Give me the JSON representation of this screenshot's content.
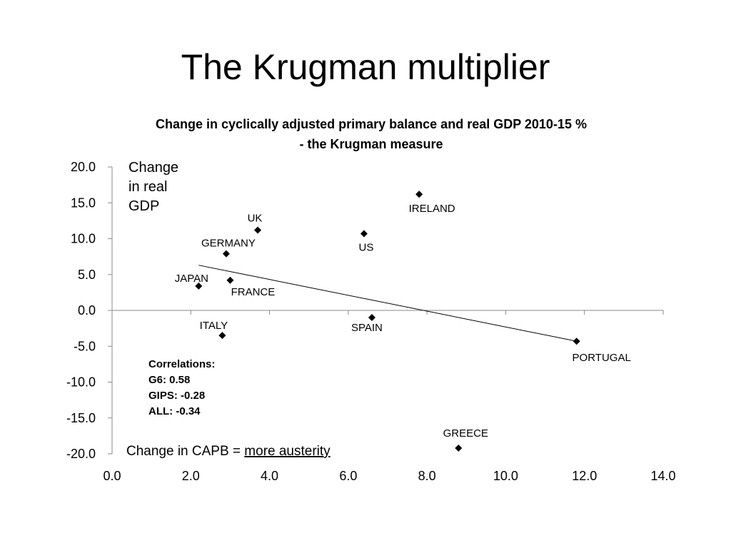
{
  "slide": {
    "title": "The Krugman multiplier"
  },
  "chart_data": {
    "type": "scatter",
    "title_lines": [
      "Change in cyclically adjusted primary balance and real GDP 2010-15 %",
      "- the Krugman measure"
    ],
    "ylabel_lines": [
      "Change",
      "in real",
      "GDP"
    ],
    "xlabel": {
      "prefix": "Change in CAPB = ",
      "emphasis": "more austerity"
    },
    "xlim": [
      0,
      14
    ],
    "ylim": [
      -20,
      20
    ],
    "x_ticks": [
      "0.0",
      "2.0",
      "4.0",
      "6.0",
      "8.0",
      "10.0",
      "12.0",
      "14.0"
    ],
    "y_ticks": [
      "20.0",
      "15.0",
      "10.0",
      "5.0",
      "0.0",
      "-5.0",
      "-10.0",
      "-15.0",
      "-20.0"
    ],
    "points": [
      {
        "label": "UK",
        "x": 3.7,
        "y": 11.2
      },
      {
        "label": "IRELAND",
        "x": 7.8,
        "y": 16.2
      },
      {
        "label": "GERMANY",
        "x": 2.9,
        "y": 7.9
      },
      {
        "label": "US",
        "x": 6.4,
        "y": 10.7
      },
      {
        "label": "JAPAN",
        "x": 2.2,
        "y": 3.4
      },
      {
        "label": "FRANCE",
        "x": 3.0,
        "y": 4.2
      },
      {
        "label": "ITALY",
        "x": 2.8,
        "y": -3.5
      },
      {
        "label": "SPAIN",
        "x": 6.6,
        "y": -1.0
      },
      {
        "label": "PORTUGAL",
        "x": 11.8,
        "y": -4.3
      },
      {
        "label": "GREECE",
        "x": 8.8,
        "y": -19.2
      }
    ],
    "trendline": {
      "x": [
        2.2,
        11.8
      ],
      "y": [
        6.3,
        -4.3
      ]
    },
    "correlations": [
      "Correlations:",
      "G6: 0.58",
      "GIPS: -0.28",
      "ALL: -0.34"
    ]
  }
}
